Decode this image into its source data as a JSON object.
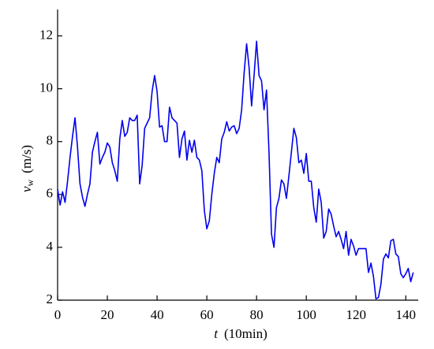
{
  "chart_data": {
    "type": "line",
    "xlabel": {
      "symbol": "t",
      "unit": "(10min)"
    },
    "ylabel": {
      "symbol": "v",
      "subscript": "w",
      "unit": "(m/s)"
    },
    "xlim": [
      0,
      145
    ],
    "ylim": [
      2,
      13
    ],
    "xticks": [
      0,
      20,
      40,
      60,
      80,
      100,
      120,
      140
    ],
    "yticks": [
      2,
      4,
      6,
      8,
      10,
      12
    ],
    "x": [
      0,
      1,
      2,
      3,
      4,
      5,
      6,
      7,
      8,
      9,
      10,
      11,
      12,
      13,
      14,
      15,
      16,
      17,
      18,
      19,
      20,
      21,
      22,
      23,
      24,
      25,
      26,
      27,
      28,
      29,
      30,
      31,
      32,
      33,
      34,
      35,
      36,
      37,
      38,
      39,
      40,
      41,
      42,
      43,
      44,
      45,
      46,
      47,
      48,
      49,
      50,
      51,
      52,
      53,
      54,
      55,
      56,
      57,
      58,
      59,
      60,
      61,
      62,
      63,
      64,
      65,
      66,
      67,
      68,
      69,
      70,
      71,
      72,
      73,
      74,
      75,
      76,
      77,
      78,
      79,
      80,
      81,
      82,
      83,
      84,
      85,
      86,
      87,
      88,
      89,
      90,
      91,
      92,
      93,
      94,
      95,
      96,
      97,
      98,
      99,
      100,
      101,
      102,
      103,
      104,
      105,
      106,
      107,
      108,
      109,
      110,
      111,
      112,
      113,
      114,
      115,
      116,
      117,
      118,
      119,
      120,
      121,
      122,
      123,
      124,
      125,
      126,
      127,
      128,
      129,
      130,
      131,
      132,
      133,
      134,
      135,
      136,
      137,
      138,
      139,
      140,
      141,
      142,
      143
    ],
    "series": [
      {
        "color": "#0000ee",
        "values": [
          6.2,
          5.6,
          6.1,
          5.7,
          6.5,
          7.4,
          8.2,
          8.9,
          7.8,
          6.4,
          5.9,
          5.55,
          6.0,
          6.4,
          7.6,
          8.0,
          8.35,
          7.15,
          7.4,
          7.6,
          7.95,
          7.8,
          7.2,
          6.9,
          6.5,
          8.1,
          8.8,
          8.2,
          8.35,
          8.9,
          8.8,
          8.8,
          9.0,
          6.4,
          7.1,
          8.5,
          8.7,
          8.9,
          9.9,
          10.5,
          9.9,
          8.55,
          8.6,
          8.0,
          8.0,
          9.3,
          8.9,
          8.8,
          8.7,
          7.4,
          8.1,
          8.4,
          7.3,
          8.05,
          7.6,
          8.05,
          7.4,
          7.3,
          6.9,
          5.4,
          4.7,
          5.0,
          6.0,
          6.8,
          7.4,
          7.2,
          8.1,
          8.35,
          8.75,
          8.4,
          8.55,
          8.6,
          8.3,
          8.5,
          9.2,
          10.6,
          11.7,
          10.8,
          9.35,
          10.5,
          11.8,
          10.5,
          10.3,
          9.2,
          9.95,
          7.6,
          4.5,
          4.0,
          5.5,
          5.85,
          6.55,
          6.4,
          5.85,
          6.7,
          7.6,
          8.5,
          8.15,
          7.2,
          7.3,
          6.8,
          7.55,
          6.5,
          6.5,
          5.5,
          4.95,
          6.2,
          5.7,
          4.35,
          4.6,
          5.45,
          5.25,
          4.8,
          4.4,
          4.6,
          4.3,
          3.95,
          4.6,
          3.7,
          4.3,
          4.05,
          3.7,
          3.95,
          3.95,
          3.95,
          3.95,
          3.05,
          3.4,
          2.9,
          2.05,
          2.1,
          2.6,
          3.55,
          3.75,
          3.6,
          4.25,
          4.3,
          3.75,
          3.65,
          3.0,
          2.85,
          3.0,
          3.2,
          2.7,
          3.05
        ]
      }
    ]
  }
}
